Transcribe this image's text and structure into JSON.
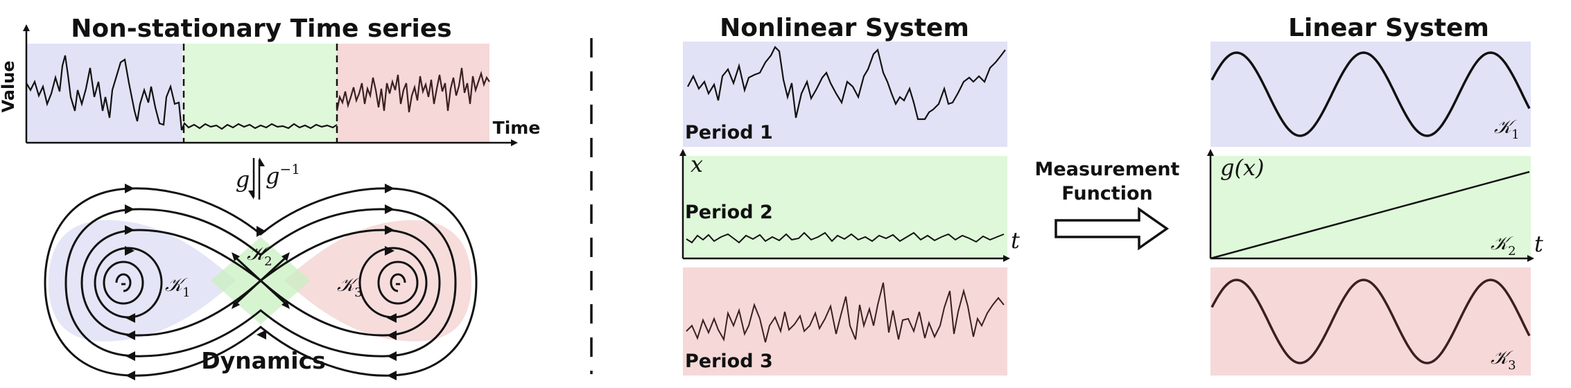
{
  "left_panel": {
    "title": "Non-stationary Time series",
    "y_axis_label": "Value",
    "x_axis_label": "Time",
    "map_forward": "g",
    "map_inverse": "g",
    "map_inverse_sup": "−1",
    "dynamics_label": "Dynamics",
    "regions": [
      {
        "symbol": "𝒦",
        "subscript": "1"
      },
      {
        "symbol": "𝒦",
        "subscript": "2"
      },
      {
        "symbol": "𝒦",
        "subscript": "3"
      }
    ]
  },
  "middle_panel": {
    "title": "Nonlinear System",
    "periods": [
      "Period 1",
      "Period 2",
      "Period 3"
    ],
    "x_var": "x",
    "t_var": "t"
  },
  "arrow": {
    "line1": "Measurement",
    "line2": "Function"
  },
  "right_panel": {
    "title": "Linear System",
    "y_var": "g(x)",
    "t_var": "t",
    "operators": [
      {
        "symbol": "𝒦",
        "subscript": "1"
      },
      {
        "symbol": "𝒦",
        "subscript": "2"
      },
      {
        "symbol": "𝒦",
        "subscript": "3"
      }
    ]
  },
  "colors": {
    "blue_region": "#e1e2f5",
    "green_region": "#dff8d9",
    "red_region": "#f6d8d8",
    "line": "#111111",
    "line_red": "#3a2020"
  }
}
